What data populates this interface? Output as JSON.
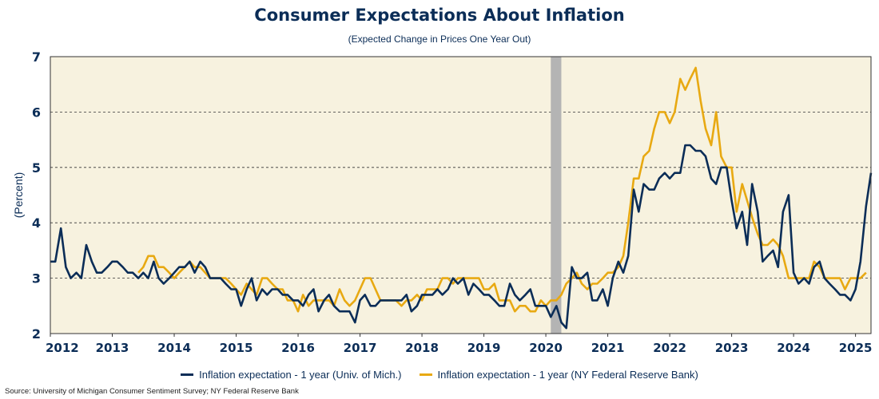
{
  "title": "Consumer Expectations About Inflation",
  "subtitle": "(Expected Change in Prices One Year Out)",
  "source": "Source: University of Michigan Consumer Sentiment Survey; NY Federal Reserve Bank",
  "colors": {
    "background": "#f7f2df",
    "umich": "#0b2d57",
    "nyfed": "#e8a912",
    "recession": "#b4b4b4",
    "axis_text": "#0b2d57"
  },
  "chart_data": {
    "type": "line",
    "title": "Consumer Expectations About Inflation",
    "subtitle": "(Expected Change in Prices One Year Out)",
    "ylabel": "(Percent)",
    "xlabel": "",
    "xlim": [
      2012,
      2025.25
    ],
    "ylim": [
      2,
      7
    ],
    "yticks": [
      2,
      3,
      4,
      5,
      6,
      7
    ],
    "xticks": [
      "2012",
      "2013",
      "2014",
      "2015",
      "2016",
      "2017",
      "2018",
      "2019",
      "2020",
      "2021",
      "2022",
      "2023",
      "2024",
      "2025"
    ],
    "grid": "horizontal dashed",
    "legend_position": "bottom",
    "shaded_region": {
      "label": "",
      "x_start": 2020.08,
      "x_end": 2020.25
    },
    "series": [
      {
        "name": "Inflation expectation - 1 year (Univ. of Mich.)",
        "color": "#0b2d57",
        "x": [
          2012.0,
          2012.08,
          2012.17,
          2012.25,
          2012.33,
          2012.42,
          2012.5,
          2012.58,
          2012.67,
          2012.75,
          2012.83,
          2012.92,
          2013.0,
          2013.08,
          2013.17,
          2013.25,
          2013.33,
          2013.42,
          2013.5,
          2013.58,
          2013.67,
          2013.75,
          2013.83,
          2013.92,
          2014.0,
          2014.08,
          2014.17,
          2014.25,
          2014.33,
          2014.42,
          2014.5,
          2014.58,
          2014.67,
          2014.75,
          2014.83,
          2014.92,
          2015.0,
          2015.08,
          2015.17,
          2015.25,
          2015.33,
          2015.42,
          2015.5,
          2015.58,
          2015.67,
          2015.75,
          2015.83,
          2015.92,
          2016.0,
          2016.08,
          2016.17,
          2016.25,
          2016.33,
          2016.42,
          2016.5,
          2016.58,
          2016.67,
          2016.75,
          2016.83,
          2016.92,
          2017.0,
          2017.08,
          2017.17,
          2017.25,
          2017.33,
          2017.42,
          2017.5,
          2017.58,
          2017.67,
          2017.75,
          2017.83,
          2017.92,
          2018.0,
          2018.08,
          2018.17,
          2018.25,
          2018.33,
          2018.42,
          2018.5,
          2018.58,
          2018.67,
          2018.75,
          2018.83,
          2018.92,
          2019.0,
          2019.08,
          2019.17,
          2019.25,
          2019.33,
          2019.42,
          2019.5,
          2019.58,
          2019.67,
          2019.75,
          2019.83,
          2019.92,
          2020.0,
          2020.08,
          2020.17,
          2020.25,
          2020.33,
          2020.42,
          2020.5,
          2020.58,
          2020.67,
          2020.75,
          2020.83,
          2020.92,
          2021.0,
          2021.08,
          2021.17,
          2021.25,
          2021.33,
          2021.42,
          2021.5,
          2021.58,
          2021.67,
          2021.75,
          2021.83,
          2021.92,
          2022.0,
          2022.08,
          2022.17,
          2022.25,
          2022.33,
          2022.42,
          2022.5,
          2022.58,
          2022.67,
          2022.75,
          2022.83,
          2022.92,
          2023.0,
          2023.08,
          2023.17,
          2023.25,
          2023.33,
          2023.42,
          2023.5,
          2023.58,
          2023.67,
          2023.75,
          2023.83,
          2023.92,
          2024.0,
          2024.08,
          2024.17,
          2024.25,
          2024.33,
          2024.42,
          2024.5,
          2024.58,
          2024.67,
          2024.75,
          2024.83,
          2024.92,
          2025.0,
          2025.08,
          2025.17,
          2025.25
        ],
        "y": [
          3.3,
          3.3,
          3.9,
          3.2,
          3.0,
          3.1,
          3.0,
          3.6,
          3.3,
          3.1,
          3.1,
          3.2,
          3.3,
          3.3,
          3.2,
          3.1,
          3.1,
          3.0,
          3.1,
          3.0,
          3.3,
          3.0,
          2.9,
          3.0,
          3.1,
          3.2,
          3.2,
          3.3,
          3.1,
          3.3,
          3.2,
          3.0,
          3.0,
          3.0,
          2.9,
          2.8,
          2.8,
          2.5,
          2.8,
          3.0,
          2.6,
          2.8,
          2.7,
          2.8,
          2.8,
          2.7,
          2.7,
          2.6,
          2.6,
          2.5,
          2.7,
          2.8,
          2.4,
          2.6,
          2.7,
          2.5,
          2.4,
          2.4,
          2.4,
          2.2,
          2.6,
          2.7,
          2.5,
          2.5,
          2.6,
          2.6,
          2.6,
          2.6,
          2.6,
          2.7,
          2.4,
          2.5,
          2.7,
          2.7,
          2.7,
          2.8,
          2.7,
          2.8,
          3.0,
          2.9,
          3.0,
          2.7,
          2.9,
          2.8,
          2.7,
          2.7,
          2.6,
          2.5,
          2.5,
          2.9,
          2.7,
          2.6,
          2.7,
          2.8,
          2.5,
          2.5,
          2.5,
          2.3,
          2.5,
          2.2,
          2.1,
          3.2,
          3.0,
          3.0,
          3.1,
          2.6,
          2.6,
          2.8,
          2.5,
          3.0,
          3.3,
          3.1,
          3.4,
          4.6,
          4.2,
          4.7,
          4.6,
          4.6,
          4.8,
          4.9,
          4.8,
          4.9,
          4.9,
          5.4,
          5.4,
          5.3,
          5.3,
          5.2,
          4.8,
          4.7,
          5.0,
          5.0,
          4.4,
          3.9,
          4.2,
          3.6,
          4.7,
          4.2,
          3.3,
          3.4,
          3.5,
          3.2,
          4.2,
          4.5,
          3.1,
          2.9,
          3.0,
          2.9,
          3.2,
          3.3,
          3.0,
          2.9,
          2.8,
          2.7,
          2.7,
          2.6,
          2.8,
          3.3,
          4.3,
          4.9
        ]
      },
      {
        "name": "Inflation expectation - 1 year (NY Federal Reserve Bank)",
        "color": "#e8a912",
        "x": [
          2013.42,
          2013.5,
          2013.58,
          2013.67,
          2013.75,
          2013.83,
          2013.92,
          2014.0,
          2014.08,
          2014.17,
          2014.25,
          2014.33,
          2014.42,
          2014.5,
          2014.58,
          2014.67,
          2014.75,
          2014.83,
          2014.92,
          2015.0,
          2015.08,
          2015.17,
          2015.25,
          2015.33,
          2015.42,
          2015.5,
          2015.58,
          2015.67,
          2015.75,
          2015.83,
          2015.92,
          2016.0,
          2016.08,
          2016.17,
          2016.25,
          2016.33,
          2016.42,
          2016.5,
          2016.58,
          2016.67,
          2016.75,
          2016.83,
          2016.92,
          2017.0,
          2017.08,
          2017.17,
          2017.25,
          2017.33,
          2017.42,
          2017.5,
          2017.58,
          2017.67,
          2017.75,
          2017.83,
          2017.92,
          2018.0,
          2018.08,
          2018.17,
          2018.25,
          2018.33,
          2018.42,
          2018.5,
          2018.58,
          2018.67,
          2018.75,
          2018.83,
          2018.92,
          2019.0,
          2019.08,
          2019.17,
          2019.25,
          2019.33,
          2019.42,
          2019.5,
          2019.58,
          2019.67,
          2019.75,
          2019.83,
          2019.92,
          2020.0,
          2020.08,
          2020.17,
          2020.25,
          2020.33,
          2020.42,
          2020.5,
          2020.58,
          2020.67,
          2020.75,
          2020.83,
          2020.92,
          2021.0,
          2021.08,
          2021.17,
          2021.25,
          2021.33,
          2021.42,
          2021.5,
          2021.58,
          2021.67,
          2021.75,
          2021.83,
          2021.92,
          2022.0,
          2022.08,
          2022.17,
          2022.25,
          2022.33,
          2022.42,
          2022.5,
          2022.58,
          2022.67,
          2022.75,
          2022.83,
          2022.92,
          2023.0,
          2023.08,
          2023.17,
          2023.25,
          2023.33,
          2023.42,
          2023.5,
          2023.58,
          2023.67,
          2023.75,
          2023.83,
          2023.92,
          2024.0,
          2024.08,
          2024.17,
          2024.25,
          2024.33,
          2024.42,
          2024.5,
          2024.58,
          2024.67,
          2024.75,
          2024.83,
          2024.92,
          2025.0,
          2025.08,
          2025.17
        ],
        "y": [
          3.1,
          3.2,
          3.4,
          3.4,
          3.2,
          3.2,
          3.1,
          3.0,
          3.1,
          3.2,
          3.3,
          3.2,
          3.2,
          3.1,
          3.0,
          3.0,
          3.0,
          3.0,
          2.9,
          2.8,
          2.7,
          2.9,
          2.8,
          2.7,
          3.0,
          3.0,
          2.9,
          2.8,
          2.8,
          2.6,
          2.6,
          2.4,
          2.7,
          2.5,
          2.6,
          2.6,
          2.6,
          2.6,
          2.5,
          2.8,
          2.6,
          2.5,
          2.6,
          2.8,
          3.0,
          3.0,
          2.8,
          2.6,
          2.6,
          2.6,
          2.6,
          2.5,
          2.6,
          2.6,
          2.7,
          2.6,
          2.8,
          2.8,
          2.8,
          3.0,
          3.0,
          2.9,
          3.0,
          3.0,
          3.0,
          3.0,
          3.0,
          2.8,
          2.8,
          2.9,
          2.6,
          2.6,
          2.6,
          2.4,
          2.5,
          2.5,
          2.4,
          2.4,
          2.6,
          2.5,
          2.6,
          2.6,
          2.7,
          2.9,
          3.0,
          3.1,
          2.9,
          2.8,
          2.9,
          2.9,
          3.0,
          3.1,
          3.1,
          3.2,
          3.4,
          4.0,
          4.8,
          4.8,
          5.2,
          5.3,
          5.7,
          6.0,
          6.0,
          5.8,
          6.0,
          6.6,
          6.4,
          6.6,
          6.8,
          6.2,
          5.7,
          5.4,
          6.0,
          5.2,
          5.0,
          5.0,
          4.2,
          4.7,
          4.4,
          4.1,
          3.8,
          3.6,
          3.6,
          3.7,
          3.6,
          3.4,
          3.0,
          3.0,
          3.0,
          3.0,
          3.0,
          3.3,
          3.2,
          3.0,
          3.0,
          3.0,
          3.0,
          2.8,
          3.0,
          3.0,
          3.0,
          3.1
        ]
      }
    ]
  }
}
